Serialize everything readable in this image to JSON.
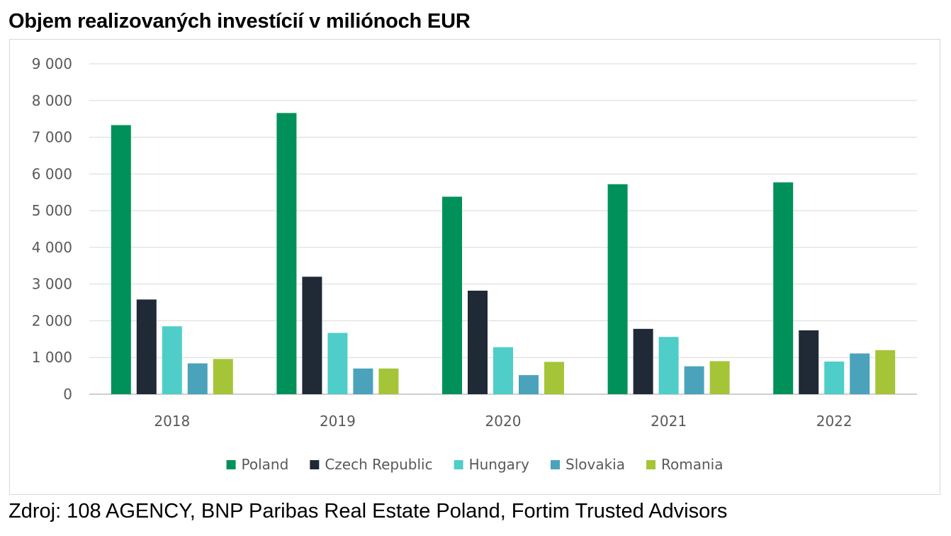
{
  "title": "Objem realizovaných investícií v miliónoch EUR",
  "source": "Zdroj: 108 AGENCY, BNP Paribas Real Estate Poland, Fortim Trusted Advisors",
  "chart_data": {
    "type": "bar",
    "title": "",
    "xlabel": "",
    "ylabel": "",
    "categories": [
      "2018",
      "2019",
      "2020",
      "2021",
      "2022"
    ],
    "ylim": [
      0,
      9000
    ],
    "yticks": [
      0,
      1000,
      2000,
      3000,
      4000,
      5000,
      6000,
      7000,
      8000,
      9000
    ],
    "ytick_labels": [
      "0",
      "1 000",
      "2 000",
      "3 000",
      "4 000",
      "5 000",
      "6 000",
      "7 000",
      "8 000",
      "9 000"
    ],
    "grid": true,
    "legend_position": "bottom",
    "series": [
      {
        "name": "Poland",
        "color": "#00915a",
        "values": [
          7330,
          7660,
          5380,
          5720,
          5770
        ]
      },
      {
        "name": "Czech Republic",
        "color": "#1f2a36",
        "values": [
          2580,
          3200,
          2820,
          1780,
          1740
        ]
      },
      {
        "name": "Hungary",
        "color": "#4fcdc8",
        "values": [
          1850,
          1670,
          1280,
          1560,
          890
        ]
      },
      {
        "name": "Slovakia",
        "color": "#4aa3bb",
        "values": [
          840,
          700,
          520,
          760,
          1110
        ]
      },
      {
        "name": "Romania",
        "color": "#a5c438",
        "values": [
          960,
          700,
          880,
          900,
          1200
        ]
      }
    ]
  }
}
